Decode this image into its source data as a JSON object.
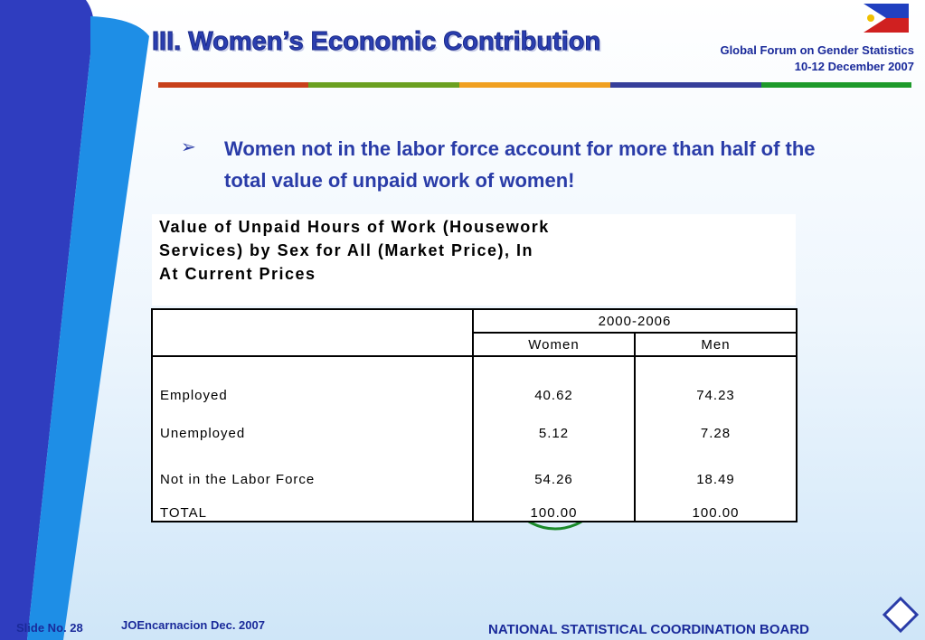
{
  "header": {
    "title": "III.  Women’s Economic Contribution",
    "event": "Global Forum on Gender Statistics",
    "date": "10-12 December 2007"
  },
  "bullet": "Women not in the labor force account for more than half of the total value of unpaid work of women!",
  "table": {
    "title_lines": [
      "Value of Unpaid Hours of Work (Housework",
      "Services) by Sex for All (Market Price), In",
      "At Current Prices"
    ],
    "period": "2000-2006",
    "columns": [
      "Women",
      "Men"
    ],
    "rows": [
      [
        "Employed",
        "40.62",
        "74.23"
      ],
      [
        "Unemployed",
        "5.12",
        "7.28"
      ],
      [
        "Not in the Labor Force",
        "54.26",
        "18.49"
      ],
      [
        "TOTAL",
        "100.00",
        "100.00"
      ]
    ]
  },
  "footer": {
    "slide": "Slide No. 28",
    "author": "JOEncarnacion Dec. 2007",
    "org": "NATIONAL STATISTICAL COORDINATION BOARD"
  }
}
